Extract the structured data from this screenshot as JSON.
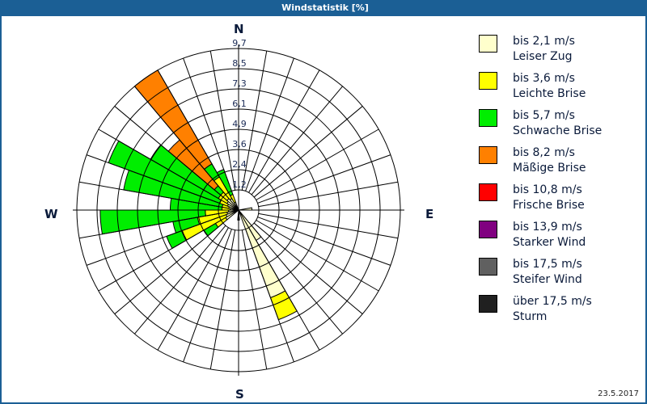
{
  "window": {
    "title": "Windstatistik [%]"
  },
  "compass": {
    "n": "N",
    "e": "E",
    "s": "S",
    "w": "W"
  },
  "footer": {
    "date": "23.5.2017"
  },
  "legend": [
    {
      "line1": "bis 2,1 m/s",
      "line2": "Leiser Zug",
      "color": "#ffffcc"
    },
    {
      "line1": "bis 3,6 m/s",
      "line2": "Leichte Brise",
      "color": "#ffff00"
    },
    {
      "line1": "bis 5,7 m/s",
      "line2": "Schwache Brise",
      "color": "#00ee00"
    },
    {
      "line1": "bis 8,2 m/s",
      "line2": "Mäßige Brise",
      "color": "#ff8000"
    },
    {
      "line1": "bis 10,8 m/s",
      "line2": "Frische Brise",
      "color": "#ff0000"
    },
    {
      "line1": "bis 13,9 m/s",
      "line2": "Starker Wind",
      "color": "#800080"
    },
    {
      "line1": "bis 17,5 m/s",
      "line2": "Steifer Wind",
      "color": "#606060"
    },
    {
      "line1": "über 17,5 m/s",
      "line2": "Sturm",
      "color": "#202020"
    }
  ],
  "chart_data": {
    "type": "polar-bar (wind rose)",
    "title": "Windstatistik [%]",
    "radial_ticks": [
      "1,2",
      "2,4",
      "3,6",
      "4,9",
      "6,1",
      "7,3",
      "8,5",
      "9,7"
    ],
    "radial_max": 9.7,
    "sector_width_deg": 10,
    "directions_labels": [
      "N",
      "E",
      "S",
      "W"
    ],
    "series_names": [
      "bis 2,1 m/s",
      "bis 3,6 m/s",
      "bis 5,7 m/s",
      "bis 8,2 m/s",
      "bis 10,8 m/s",
      "bis 13,9 m/s",
      "bis 17,5 m/s",
      "über 17,5 m/s"
    ],
    "sectors": [
      {
        "from": 80,
        "to": 90,
        "cumulative": [
          0.8
        ]
      },
      {
        "from": 140,
        "to": 150,
        "cumulative": [
          2.1
        ]
      },
      {
        "from": 150,
        "to": 160,
        "cumulative": [
          5.6,
          7.0
        ]
      },
      {
        "from": 175,
        "to": 185,
        "cumulative": [
          0.6
        ]
      },
      {
        "from": 230,
        "to": 240,
        "cumulative": [
          0.9,
          1.6,
          2.4
        ]
      },
      {
        "from": 240,
        "to": 250,
        "cumulative": [
          0.8,
          3.6,
          4.6
        ]
      },
      {
        "from": 250,
        "to": 260,
        "cumulative": [
          0.7,
          2.5,
          4.0
        ]
      },
      {
        "from": 260,
        "to": 270,
        "cumulative": [
          0.6,
          2.0,
          8.3
        ]
      },
      {
        "from": 270,
        "to": 280,
        "cumulative": [
          0.5,
          1.0,
          4.1
        ]
      },
      {
        "from": 280,
        "to": 290,
        "cumulative": [
          0.6,
          1.0,
          7.0
        ]
      },
      {
        "from": 290,
        "to": 300,
        "cumulative": [
          0.7,
          1.2,
          8.3
        ]
      },
      {
        "from": 300,
        "to": 310,
        "cumulative": [
          0.8,
          1.4,
          6.1
        ]
      },
      {
        "from": 310,
        "to": 320,
        "cumulative": [
          0.9,
          1.4,
          1.9,
          5.5
        ]
      },
      {
        "from": 320,
        "to": 330,
        "cumulative": [
          0.8,
          2.3,
          3.2,
          9.7
        ]
      },
      {
        "from": 330,
        "to": 340,
        "cumulative": [
          0.5,
          1.0,
          2.6
        ]
      }
    ]
  }
}
